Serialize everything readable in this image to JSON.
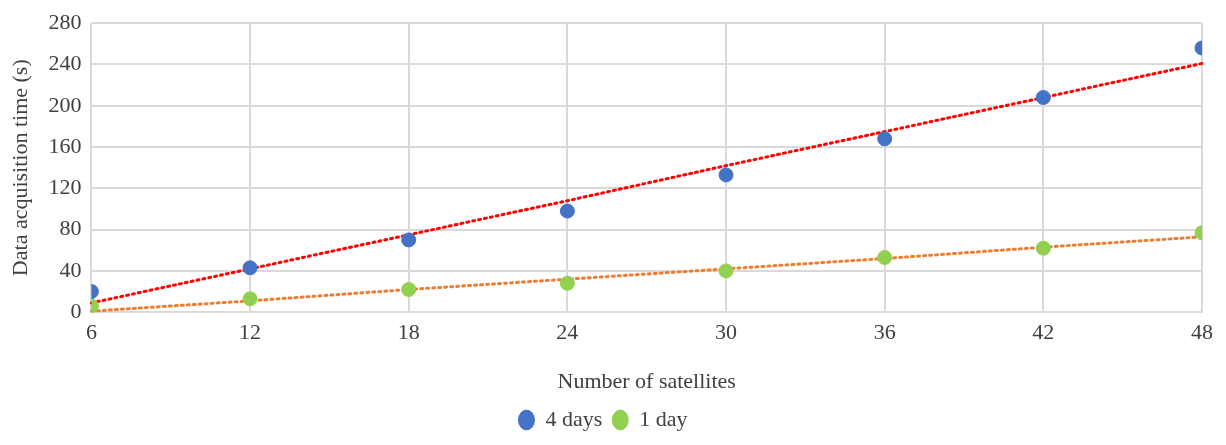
{
  "chart_data": {
    "type": "scatter",
    "xlabel": "Number of satellites",
    "ylabel": "Data acquisition time (s)",
    "xlim": [
      6,
      48
    ],
    "xticks": [
      6,
      12,
      18,
      24,
      30,
      36,
      42,
      48
    ],
    "ylim": [
      0,
      280
    ],
    "yticks": [
      0,
      40,
      80,
      120,
      160,
      200,
      240,
      280
    ],
    "grid": true,
    "legend": "bottom",
    "marker": "circle",
    "x": [
      6,
      12,
      18,
      24,
      30,
      36,
      42,
      48
    ],
    "series": [
      {
        "name": "4 days",
        "color": "#4472c4",
        "values": [
          20,
          43,
          70,
          98,
          133,
          168,
          208,
          256
        ]
      },
      {
        "name": "1 day",
        "color": "#92d050",
        "values": [
          6,
          13,
          22,
          28,
          40,
          53,
          62,
          77
        ]
      },
      {
        "type": "line",
        "color": "#ff0000",
        "line_style": "dotted",
        "marker": "none",
        "values": [
          9,
          42,
          75,
          108,
          142,
          175,
          208,
          241
        ]
      },
      {
        "type": "line",
        "color": "#ed7d31",
        "line_style": "dotted",
        "marker": "none",
        "values": [
          1,
          11,
          22,
          32,
          42,
          52,
          63,
          73
        ]
      }
    ]
  }
}
